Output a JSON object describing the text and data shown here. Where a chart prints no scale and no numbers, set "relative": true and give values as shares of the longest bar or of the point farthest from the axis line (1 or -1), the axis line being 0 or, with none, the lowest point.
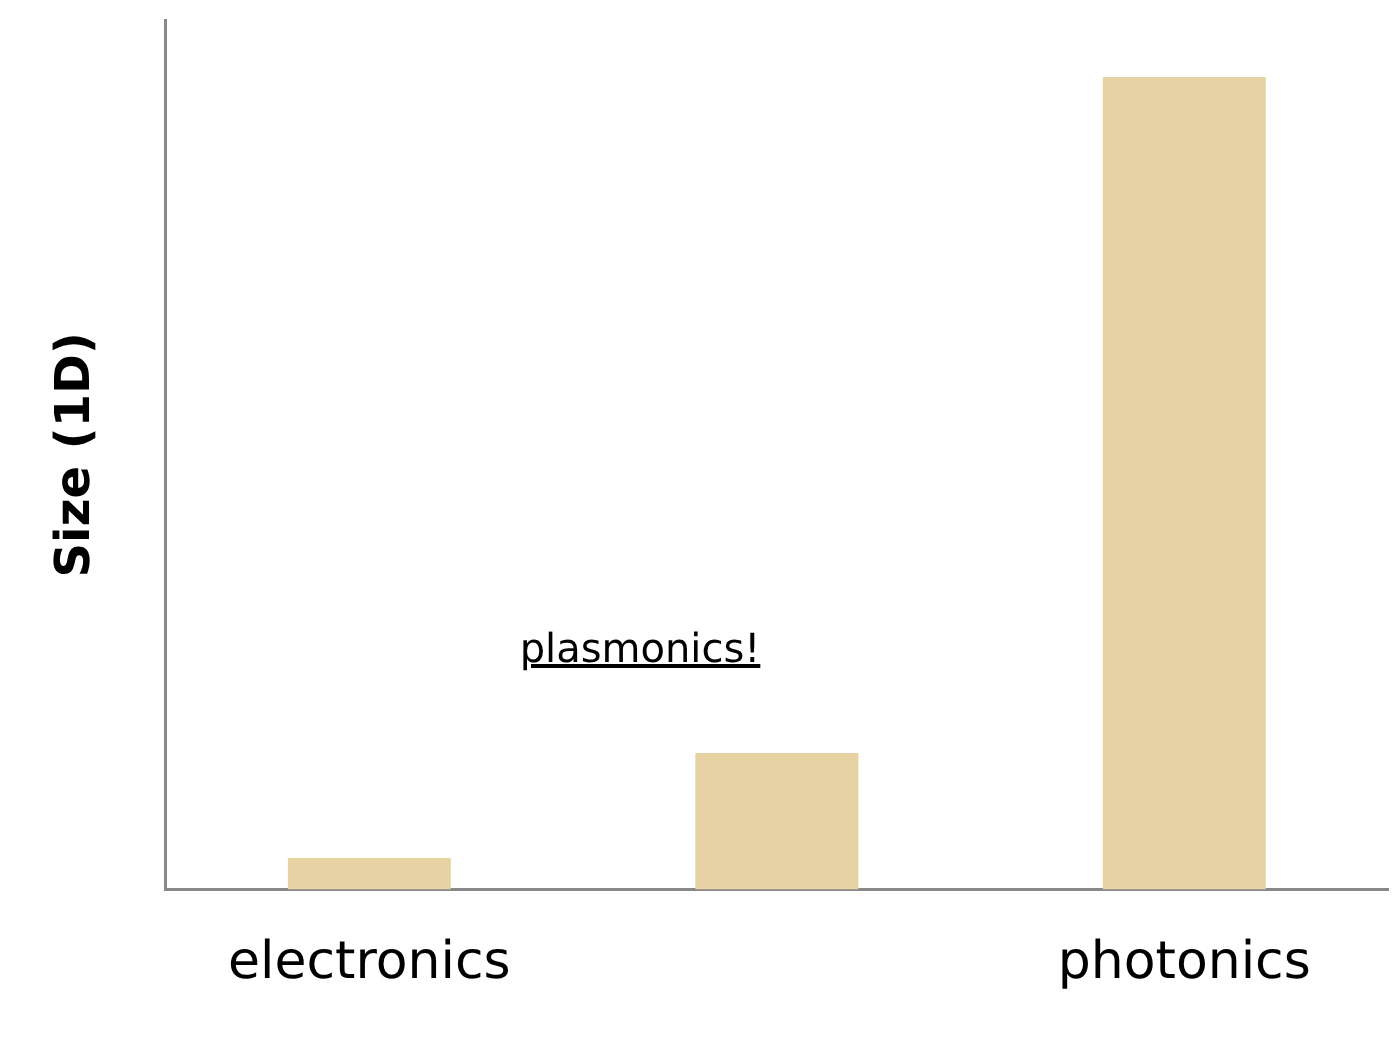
{
  "chart_data": {
    "type": "bar",
    "relative": true,
    "ylabel": "Size (1D)",
    "categories": [
      "electronics",
      null,
      "photonics"
    ],
    "values": [
      0.039,
      0.168,
      1
    ],
    "color": "#e6d2a2",
    "annotations": [
      "plasmonics!"
    ],
    "grid": false,
    "legend": false
  }
}
